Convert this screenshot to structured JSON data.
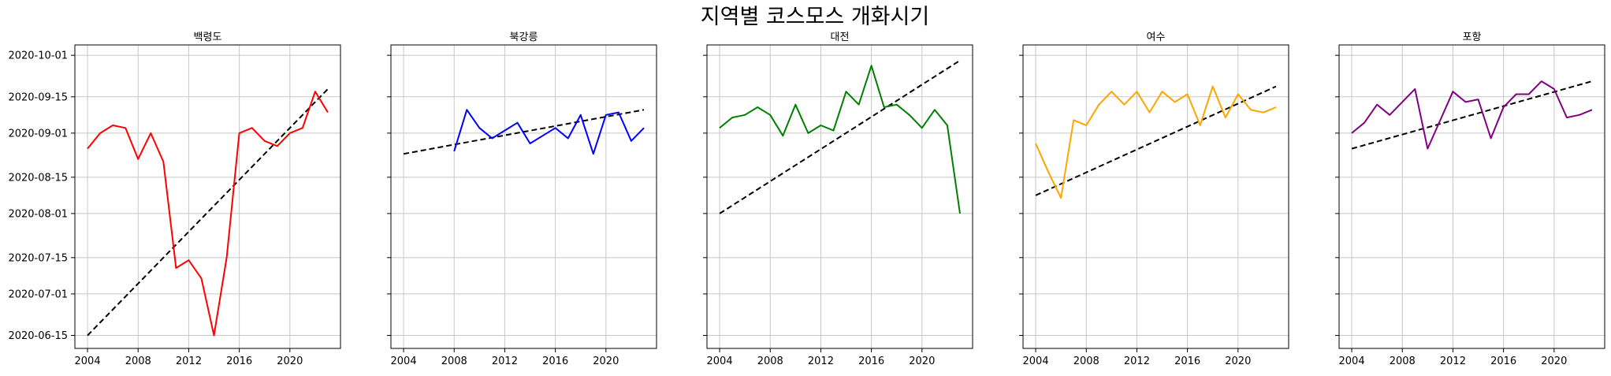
{
  "title": "지역별 코스모스 개화시기",
  "chart_data": {
    "type": "line",
    "sharey": true,
    "grid": true,
    "xlim": [
      2003,
      2024
    ],
    "ylim": [
      "2020-06-10",
      "2020-10-05"
    ],
    "x_ticks": [
      "2004",
      "2008",
      "2012",
      "2016",
      "2020"
    ],
    "y_ticks": [
      "2020-06-15",
      "2020-07-01",
      "2020-07-15",
      "2020-08-01",
      "2020-08-15",
      "2020-09-01",
      "2020-09-15",
      "2020-10-01"
    ],
    "panels": [
      {
        "title": "백령도",
        "color": "#ff0000",
        "x": [
          2004,
          2005,
          2006,
          2007,
          2008,
          2009,
          2010,
          2011,
          2012,
          2013,
          2014,
          2015,
          2016,
          2017,
          2018,
          2019,
          2020,
          2021,
          2022,
          2023
        ],
        "y": [
          "2020-08-26",
          "2020-09-01",
          "2020-09-04",
          "2020-09-03",
          "2020-08-22",
          "2020-09-01",
          "2020-08-21",
          "2020-07-11",
          "2020-07-14",
          "2020-07-07",
          "2020-06-15",
          "2020-07-15",
          "2020-09-01",
          "2020-09-03",
          "2020-08-29",
          "2020-08-27",
          "2020-09-01",
          "2020-09-03",
          "2020-09-17",
          "2020-09-09"
        ],
        "trend": [
          [
            "2004",
            "2020-06-15"
          ],
          [
            "2023",
            "2020-09-18"
          ]
        ]
      },
      {
        "title": "북강릉",
        "color": "#0000ff",
        "x": [
          2008,
          2009,
          2010,
          2011,
          2012,
          2013,
          2014,
          2015,
          2016,
          2017,
          2018,
          2019,
          2020,
          2021,
          2022,
          2023
        ],
        "y": [
          "2020-08-25",
          "2020-09-10",
          "2020-09-03",
          "2020-08-30",
          "2020-09-02",
          "2020-09-05",
          "2020-08-28",
          "2020-08-31",
          "2020-09-03",
          "2020-08-30",
          "2020-09-08",
          "2020-08-24",
          "2020-09-08",
          "2020-09-09",
          "2020-08-29",
          "2020-09-03"
        ],
        "trend": [
          [
            "2004",
            "2020-08-24"
          ],
          [
            "2023",
            "2020-09-10"
          ]
        ]
      },
      {
        "title": "대전",
        "color": "#008000",
        "x": [
          2004,
          2005,
          2006,
          2007,
          2008,
          2009,
          2010,
          2011,
          2012,
          2013,
          2014,
          2015,
          2016,
          2017,
          2018,
          2019,
          2020,
          2021,
          2022,
          2023
        ],
        "y": [
          "2020-09-03",
          "2020-09-07",
          "2020-09-08",
          "2020-09-11",
          "2020-09-08",
          "2020-08-31",
          "2020-09-12",
          "2020-09-01",
          "2020-09-04",
          "2020-09-02",
          "2020-09-17",
          "2020-09-12",
          "2020-09-27",
          "2020-09-11",
          "2020-09-12",
          "2020-09-08",
          "2020-09-03",
          "2020-09-10",
          "2020-09-04",
          "2020-08-01"
        ],
        "trend": [
          [
            "2004",
            "2020-08-01"
          ],
          [
            "2023",
            "2020-09-29"
          ]
        ]
      },
      {
        "title": "여수",
        "color": "#ffa500",
        "x": [
          2004,
          2005,
          2006,
          2007,
          2008,
          2009,
          2010,
          2011,
          2012,
          2013,
          2014,
          2015,
          2016,
          2017,
          2018,
          2019,
          2020,
          2021,
          2022,
          2023
        ],
        "y": [
          "2020-08-28",
          "2020-08-17",
          "2020-08-07",
          "2020-09-06",
          "2020-09-04",
          "2020-09-12",
          "2020-09-17",
          "2020-09-12",
          "2020-09-17",
          "2020-09-09",
          "2020-09-17",
          "2020-09-13",
          "2020-09-16",
          "2020-09-04",
          "2020-09-19",
          "2020-09-07",
          "2020-09-16",
          "2020-09-10",
          "2020-09-09",
          "2020-09-11"
        ],
        "trend": [
          [
            "2004",
            "2020-08-08"
          ],
          [
            "2023",
            "2020-09-19"
          ]
        ]
      },
      {
        "title": "포항",
        "color": "#800080",
        "x": [
          2004,
          2005,
          2006,
          2007,
          2008,
          2009,
          2010,
          2011,
          2012,
          2013,
          2014,
          2015,
          2016,
          2017,
          2018,
          2019,
          2020,
          2021,
          2022,
          2023
        ],
        "y": [
          "2020-09-01",
          "2020-09-05",
          "2020-09-12",
          "2020-09-08",
          "2020-09-13",
          "2020-09-18",
          "2020-08-26",
          "2020-09-06",
          "2020-09-17",
          "2020-09-13",
          "2020-09-14",
          "2020-08-30",
          "2020-09-11",
          "2020-09-16",
          "2020-09-16",
          "2020-09-21",
          "2020-09-18",
          "2020-09-07",
          "2020-09-08",
          "2020-09-10"
        ],
        "trend": [
          [
            "2004",
            "2020-08-26"
          ],
          [
            "2023",
            "2020-09-21"
          ]
        ]
      }
    ]
  }
}
